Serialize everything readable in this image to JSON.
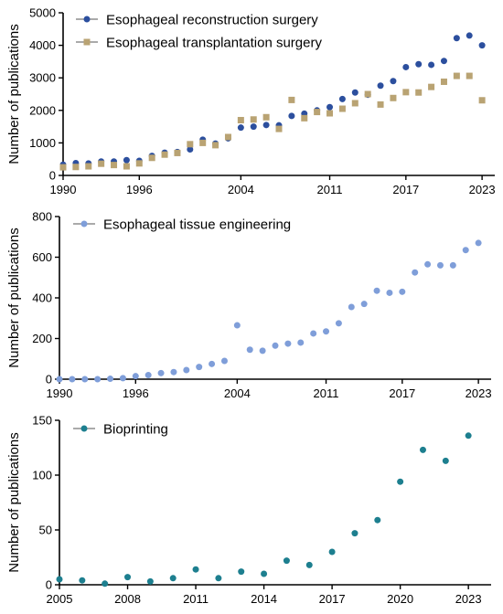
{
  "chart_data": [
    {
      "type": "scatter",
      "xlabel": "",
      "ylabel": "Number of publications",
      "xlim": [
        1990,
        2024
      ],
      "ylim": [
        0,
        5000
      ],
      "xticks": [
        1990,
        1996,
        2004,
        2011,
        2017,
        2023
      ],
      "yticks": [
        0,
        1000,
        2000,
        3000,
        4000,
        5000
      ],
      "legend_position": "top-left",
      "series": [
        {
          "name": "Esophageal reconstruction surgery",
          "color": "#2c4f9e",
          "marker": "circle",
          "trendline": true,
          "x": [
            1990,
            1991,
            1992,
            1993,
            1994,
            1995,
            1996,
            1997,
            1998,
            1999,
            2000,
            2001,
            2002,
            2003,
            2004,
            2005,
            2006,
            2007,
            2008,
            2009,
            2010,
            2011,
            2012,
            2013,
            2014,
            2015,
            2016,
            2017,
            2018,
            2019,
            2020,
            2021,
            2022,
            2023
          ],
          "y": [
            330,
            380,
            370,
            430,
            430,
            470,
            450,
            600,
            700,
            720,
            800,
            1100,
            980,
            1140,
            1470,
            1500,
            1550,
            1540,
            1830,
            1900,
            2000,
            2100,
            2350,
            2550,
            2480,
            2760,
            2900,
            3330,
            3420,
            3400,
            3520,
            4220,
            4300,
            4000
          ]
        },
        {
          "name": "Esophageal transplantation surgery",
          "color": "#b9a373",
          "marker": "square",
          "trendline": true,
          "x": [
            1990,
            1991,
            1992,
            1993,
            1994,
            1995,
            1996,
            1997,
            1998,
            1999,
            2000,
            2001,
            2002,
            2003,
            2004,
            2005,
            2006,
            2007,
            2008,
            2009,
            2010,
            2011,
            2012,
            2013,
            2014,
            2015,
            2016,
            2017,
            2018,
            2019,
            2020,
            2021,
            2022,
            2023
          ],
          "y": [
            250,
            260,
            280,
            360,
            320,
            280,
            370,
            540,
            640,
            690,
            960,
            1000,
            930,
            1180,
            1700,
            1720,
            1790,
            1430,
            2320,
            1760,
            1950,
            1910,
            2050,
            2220,
            2500,
            2180,
            2380,
            2560,
            2550,
            2720,
            2880,
            3060,
            3060,
            2310
          ]
        }
      ]
    },
    {
      "type": "scatter",
      "xlabel": "",
      "ylabel": "Number of publications",
      "xlim": [
        1990,
        2024
      ],
      "ylim": [
        0,
        800
      ],
      "xticks": [
        1990,
        1996,
        2004,
        2011,
        2017,
        2023
      ],
      "yticks": [
        0,
        200,
        400,
        600,
        800
      ],
      "legend_position": "top-left",
      "series": [
        {
          "name": "Esophageal tissue engineering",
          "color": "#7f9ed9",
          "marker": "circle",
          "trendline": true,
          "x": [
            1990,
            1991,
            1992,
            1993,
            1994,
            1995,
            1996,
            1997,
            1998,
            1999,
            2000,
            2001,
            2002,
            2003,
            2004,
            2005,
            2006,
            2007,
            2008,
            2009,
            2010,
            2011,
            2012,
            2013,
            2014,
            2015,
            2016,
            2017,
            2018,
            2019,
            2020,
            2021,
            2022,
            2023
          ],
          "y": [
            0,
            0,
            0,
            0,
            2,
            5,
            15,
            20,
            30,
            35,
            45,
            60,
            75,
            90,
            265,
            145,
            140,
            165,
            175,
            180,
            225,
            235,
            275,
            355,
            370,
            435,
            425,
            430,
            525,
            565,
            560,
            560,
            635,
            670
          ]
        }
      ]
    },
    {
      "type": "scatter",
      "xlabel": "",
      "ylabel": "Number of publications",
      "xlim": [
        2005,
        2024
      ],
      "ylim": [
        0,
        150
      ],
      "xticks": [
        2005,
        2008,
        2011,
        2014,
        2017,
        2020,
        2023
      ],
      "yticks": [
        0,
        50,
        100,
        150
      ],
      "legend_position": "top-left",
      "series": [
        {
          "name": "Bioprinting",
          "color": "#1d7f8f",
          "marker": "circle",
          "trendline": true,
          "x": [
            2005,
            2006,
            2007,
            2008,
            2009,
            2010,
            2011,
            2012,
            2013,
            2014,
            2015,
            2016,
            2017,
            2018,
            2019,
            2020,
            2021,
            2022,
            2023
          ],
          "y": [
            5,
            4,
            1,
            7,
            3,
            6,
            14,
            6,
            12,
            10,
            22,
            18,
            30,
            47,
            59,
            94,
            123,
            113,
            136
          ]
        }
      ]
    }
  ]
}
